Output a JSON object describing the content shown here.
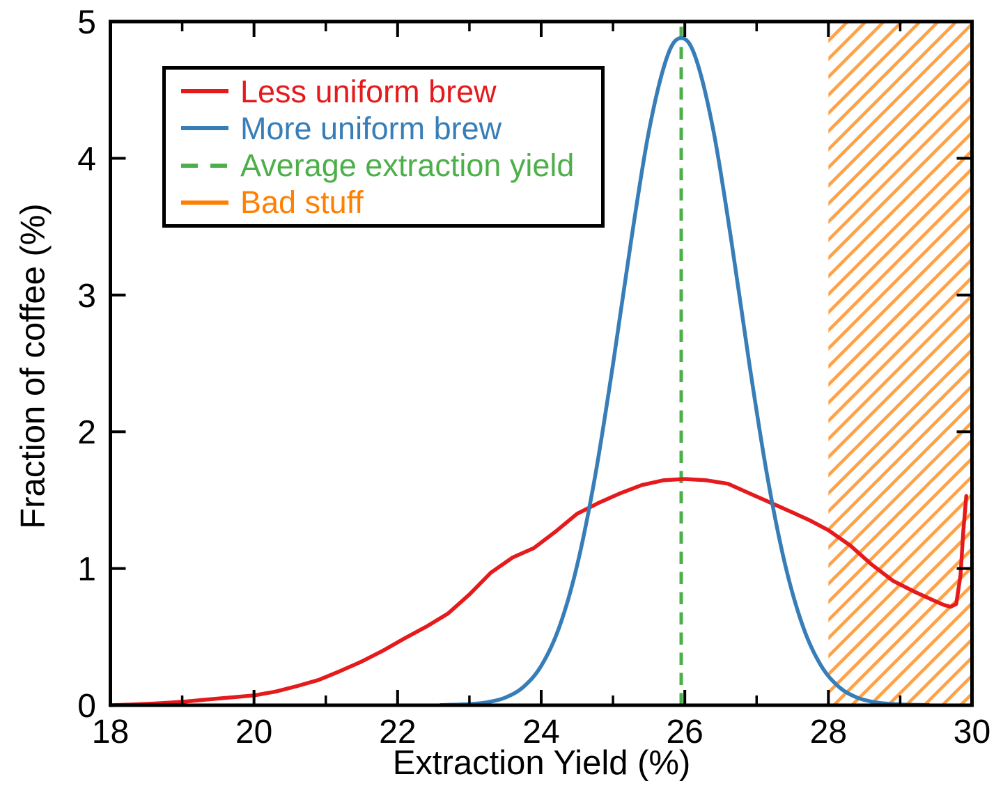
{
  "figure": {
    "x_axis": {
      "label": "Extraction Yield (%)",
      "major_ticks": [
        18,
        20,
        22,
        24,
        26,
        28,
        30
      ],
      "minor_ticks": [
        19,
        21,
        23,
        25,
        27,
        29
      ],
      "range": [
        18,
        30
      ]
    },
    "y_axis": {
      "label": "Fraction of coffee (%)",
      "major_ticks": [
        0,
        1,
        2,
        3,
        4,
        5
      ],
      "range": [
        0,
        5
      ]
    },
    "frame_color": "#000000",
    "background_color": "#ffffff"
  },
  "legend": {
    "items": [
      {
        "label": "Less uniform brew",
        "color": "#e41a1c",
        "style": "solid"
      },
      {
        "label": "More uniform brew",
        "color": "#377eb8",
        "style": "solid"
      },
      {
        "label": "Average extraction yield",
        "color": "#4daf4a",
        "style": "dashed"
      },
      {
        "label": "Bad stuff",
        "color": "#ff7f00",
        "style": "solid"
      }
    ]
  },
  "chart_data": {
    "type": "line",
    "title": "",
    "xlabel": "Extraction Yield (%)",
    "ylabel": "Fraction of coffee (%)",
    "xlim": [
      18,
      30
    ],
    "ylim": [
      0,
      5
    ],
    "grid": false,
    "legend_position": "upper-left",
    "series": [
      {
        "name": "Less uniform brew",
        "color": "#e41a1c",
        "style": "solid",
        "smooth": false,
        "points": [
          [
            18.0,
            0.0
          ],
          [
            18.3,
            0.005
          ],
          [
            18.6,
            0.012
          ],
          [
            19.0,
            0.025
          ],
          [
            19.35,
            0.042
          ],
          [
            19.7,
            0.058
          ],
          [
            20.0,
            0.072
          ],
          [
            20.3,
            0.1
          ],
          [
            20.6,
            0.14
          ],
          [
            20.9,
            0.185
          ],
          [
            21.2,
            0.25
          ],
          [
            21.5,
            0.32
          ],
          [
            21.8,
            0.4
          ],
          [
            22.1,
            0.49
          ],
          [
            22.4,
            0.575
          ],
          [
            22.7,
            0.67
          ],
          [
            23.0,
            0.81
          ],
          [
            23.3,
            0.97
          ],
          [
            23.6,
            1.08
          ],
          [
            23.9,
            1.15
          ],
          [
            24.2,
            1.27
          ],
          [
            24.5,
            1.4
          ],
          [
            24.8,
            1.48
          ],
          [
            25.1,
            1.55
          ],
          [
            25.4,
            1.61
          ],
          [
            25.7,
            1.645
          ],
          [
            26.0,
            1.655
          ],
          [
            26.3,
            1.645
          ],
          [
            26.6,
            1.62
          ],
          [
            26.9,
            1.55
          ],
          [
            27.2,
            1.48
          ],
          [
            27.5,
            1.41
          ],
          [
            27.75,
            1.35
          ],
          [
            28.0,
            1.28
          ],
          [
            28.3,
            1.17
          ],
          [
            28.6,
            1.03
          ],
          [
            28.9,
            0.91
          ],
          [
            29.2,
            0.83
          ],
          [
            29.45,
            0.77
          ],
          [
            29.6,
            0.735
          ],
          [
            29.7,
            0.72
          ],
          [
            29.78,
            0.74
          ],
          [
            29.84,
            0.95
          ],
          [
            29.88,
            1.28
          ],
          [
            29.92,
            1.53
          ]
        ]
      },
      {
        "name": "More uniform brew",
        "color": "#377eb8",
        "style": "solid",
        "smooth": true,
        "points": [
          [
            22.6,
            0.001
          ],
          [
            22.8,
            0.004
          ],
          [
            23.0,
            0.008
          ],
          [
            23.25,
            0.022
          ],
          [
            23.5,
            0.056
          ],
          [
            23.75,
            0.133
          ],
          [
            24.0,
            0.288
          ],
          [
            24.25,
            0.569
          ],
          [
            24.5,
            1.022
          ],
          [
            24.75,
            1.672
          ],
          [
            25.0,
            2.494
          ],
          [
            25.25,
            3.39
          ],
          [
            25.5,
            4.198
          ],
          [
            25.75,
            4.737
          ],
          [
            25.95,
            4.88
          ],
          [
            26.15,
            4.737
          ],
          [
            26.4,
            4.198
          ],
          [
            26.65,
            3.39
          ],
          [
            26.9,
            2.494
          ],
          [
            27.15,
            1.672
          ],
          [
            27.4,
            1.022
          ],
          [
            27.65,
            0.569
          ],
          [
            27.9,
            0.288
          ],
          [
            28.15,
            0.133
          ],
          [
            28.4,
            0.056
          ],
          [
            28.65,
            0.022
          ],
          [
            28.9,
            0.008
          ],
          [
            29.1,
            0.004
          ],
          [
            29.4,
            0.001
          ]
        ]
      }
    ],
    "vlines": [
      {
        "x": 25.95,
        "label": "Average extraction yield",
        "color": "#4daf4a",
        "style": "dashed",
        "y_range": [
          0,
          5
        ]
      }
    ],
    "regions": [
      {
        "x_start": 28,
        "x_end": 30,
        "label": "Bad stuff",
        "color": "#ff7f00",
        "fill": "hatch"
      }
    ]
  }
}
